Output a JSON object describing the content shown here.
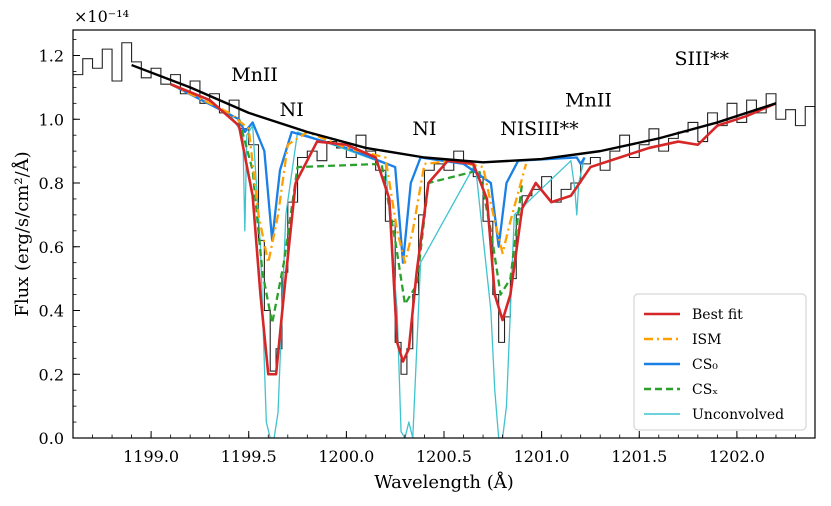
{
  "chart_data": {
    "type": "line",
    "xlabel": "Wavelength (Å)",
    "ylabel": "Flux (erg/s/cm²/Å)",
    "y_scale_label": "×10⁻¹⁴",
    "xlim": [
      1198.6,
      1202.4
    ],
    "ylim": [
      0.0,
      1.28
    ],
    "x_ticks": [
      1199.0,
      1199.5,
      1200.0,
      1200.5,
      1201.0,
      1201.5,
      1202.0
    ],
    "x_tick_labels": [
      "1199.0",
      "1199.5",
      "1200.0",
      "1200.5",
      "1201.0",
      "1201.5",
      "1202.0"
    ],
    "y_ticks": [
      0.0,
      0.2,
      0.4,
      0.6,
      0.8,
      1.0,
      1.2
    ],
    "y_tick_labels": [
      "0.0",
      "0.2",
      "0.4",
      "0.6",
      "0.8",
      "1.0",
      "1.2"
    ],
    "grid": false,
    "legend_position": "bottom-right",
    "continuum": {
      "x": [
        1198.9,
        1199.2,
        1199.5,
        1199.8,
        1200.1,
        1200.4,
        1200.7,
        1201.0,
        1201.3,
        1201.6,
        1201.9,
        1202.2
      ],
      "y": [
        1.17,
        1.1,
        1.02,
        0.96,
        0.91,
        0.88,
        0.865,
        0.875,
        0.9,
        0.94,
        0.99,
        1.05
      ]
    },
    "observed_spectrum": {
      "x": [
        1198.6,
        1198.65,
        1198.7,
        1198.75,
        1198.8,
        1198.85,
        1198.9,
        1198.95,
        1199.0,
        1199.05,
        1199.1,
        1199.15,
        1199.2,
        1199.25,
        1199.3,
        1199.35,
        1199.4,
        1199.45,
        1199.5,
        1199.55,
        1199.58,
        1199.61,
        1199.64,
        1199.67,
        1199.7,
        1199.75,
        1199.8,
        1199.85,
        1199.9,
        1199.95,
        1200.0,
        1200.05,
        1200.1,
        1200.15,
        1200.2,
        1200.25,
        1200.28,
        1200.31,
        1200.34,
        1200.37,
        1200.4,
        1200.45,
        1200.5,
        1200.55,
        1200.6,
        1200.65,
        1200.7,
        1200.75,
        1200.78,
        1200.81,
        1200.84,
        1200.87,
        1200.9,
        1200.95,
        1201.0,
        1201.05,
        1201.1,
        1201.15,
        1201.2,
        1201.25,
        1201.3,
        1201.35,
        1201.4,
        1201.45,
        1201.5,
        1201.55,
        1201.6,
        1201.65,
        1201.7,
        1201.75,
        1201.8,
        1201.85,
        1201.9,
        1201.95,
        1202.0,
        1202.05,
        1202.1,
        1202.15,
        1202.2,
        1202.25,
        1202.3,
        1202.35,
        1202.4
      ],
      "y": [
        1.14,
        1.19,
        1.16,
        1.22,
        1.12,
        1.24,
        1.18,
        1.13,
        1.16,
        1.11,
        1.14,
        1.08,
        1.12,
        1.05,
        1.08,
        1.02,
        1.06,
        0.97,
        0.92,
        0.62,
        0.4,
        0.21,
        0.28,
        0.52,
        0.74,
        0.88,
        0.9,
        0.87,
        0.93,
        0.91,
        0.88,
        0.95,
        0.9,
        0.84,
        0.68,
        0.3,
        0.2,
        0.28,
        0.45,
        0.7,
        0.84,
        0.86,
        0.84,
        0.9,
        0.86,
        0.82,
        0.68,
        0.45,
        0.3,
        0.38,
        0.5,
        0.7,
        0.76,
        0.78,
        0.82,
        0.74,
        0.78,
        0.8,
        0.86,
        0.88,
        0.84,
        0.9,
        0.95,
        0.88,
        0.92,
        0.97,
        0.9,
        0.94,
        0.96,
        0.99,
        0.93,
        1.02,
        0.98,
        1.05,
        0.99,
        1.06,
        1.02,
        1.08,
        1.0,
        1.03,
        0.98,
        1.04,
        1.01
      ]
    },
    "series": [
      {
        "name": "Best fit",
        "color": "#d62728",
        "style": "solid",
        "x": [
          1199.1,
          1199.3,
          1199.45,
          1199.52,
          1199.56,
          1199.6,
          1199.64,
          1199.68,
          1199.74,
          1199.85,
          1200.0,
          1200.15,
          1200.22,
          1200.26,
          1200.29,
          1200.32,
          1200.36,
          1200.42,
          1200.52,
          1200.65,
          1200.72,
          1200.76,
          1200.8,
          1200.84,
          1200.9,
          1200.97,
          1201.05,
          1201.15,
          1201.25,
          1201.4,
          1201.55,
          1201.7,
          1201.8,
          1201.9,
          1202.05,
          1202.2
        ],
        "y": [
          1.11,
          1.06,
          0.98,
          0.76,
          0.45,
          0.2,
          0.2,
          0.45,
          0.8,
          0.93,
          0.92,
          0.88,
          0.75,
          0.3,
          0.24,
          0.28,
          0.52,
          0.8,
          0.87,
          0.86,
          0.75,
          0.45,
          0.37,
          0.45,
          0.72,
          0.8,
          0.74,
          0.76,
          0.85,
          0.88,
          0.91,
          0.93,
          0.92,
          0.98,
          1.01,
          1.05
        ]
      },
      {
        "name": "ISM",
        "color": "#ff9f00",
        "style": "dashdot",
        "x": [
          1199.1,
          1199.4,
          1199.5,
          1199.55,
          1199.6,
          1199.65,
          1199.7,
          1199.8,
          1200.0,
          1200.2,
          1200.26,
          1200.3,
          1200.34,
          1200.4,
          1200.55,
          1200.7,
          1200.76,
          1200.8,
          1200.84,
          1200.92
        ],
        "y": [
          1.11,
          1.02,
          0.97,
          0.7,
          0.55,
          0.7,
          0.92,
          0.96,
          0.91,
          0.88,
          0.65,
          0.55,
          0.65,
          0.86,
          0.87,
          0.85,
          0.68,
          0.58,
          0.68,
          0.86
        ]
      },
      {
        "name": "CS₀",
        "color": "#1a80e5",
        "style": "solid",
        "x": [
          1199.1,
          1199.45,
          1199.48,
          1199.52,
          1199.58,
          1199.62,
          1199.66,
          1199.72,
          1200.0,
          1200.25,
          1200.29,
          1200.33,
          1200.38,
          1200.6,
          1200.74,
          1200.78,
          1200.82,
          1200.88,
          1201.18,
          1201.2,
          1201.22
        ],
        "y": [
          1.11,
          1.0,
          0.96,
          0.99,
          0.9,
          0.62,
          0.84,
          0.96,
          0.91,
          0.85,
          0.55,
          0.8,
          0.88,
          0.86,
          0.8,
          0.6,
          0.8,
          0.87,
          0.88,
          0.86,
          0.88
        ]
      },
      {
        "name": "CSₓ",
        "color": "#2ca02c",
        "style": "dashed",
        "x": [
          1199.45,
          1199.52,
          1199.57,
          1199.62,
          1199.68,
          1199.75,
          1200.18,
          1200.25,
          1200.3,
          1200.36,
          1200.42,
          1200.68,
          1200.74,
          1200.79,
          1200.84,
          1200.9
        ],
        "y": [
          1.0,
          0.84,
          0.52,
          0.36,
          0.55,
          0.85,
          0.86,
          0.62,
          0.42,
          0.48,
          0.8,
          0.84,
          0.65,
          0.45,
          0.5,
          0.8
        ]
      },
      {
        "name": "Unconvolved",
        "color": "#3fc4cf",
        "style": "solid",
        "x": [
          1199.4,
          1199.47,
          1199.48,
          1199.49,
          1199.52,
          1199.56,
          1199.59,
          1199.61,
          1199.63,
          1199.65,
          1199.69,
          1199.75,
          1200.2,
          1200.26,
          1200.28,
          1200.3,
          1200.32,
          1200.34,
          1200.38,
          1200.66,
          1200.74,
          1200.76,
          1200.78,
          1200.8,
          1200.82,
          1200.86,
          1201.15,
          1201.17,
          1201.18,
          1201.19,
          1201.22
        ],
        "y": [
          1.02,
          0.95,
          0.65,
          0.95,
          0.98,
          0.6,
          0.05,
          0.0,
          0.0,
          0.08,
          0.7,
          0.96,
          0.86,
          0.4,
          0.02,
          0.0,
          0.05,
          0.0,
          0.55,
          0.86,
          0.4,
          0.15,
          0.0,
          0.0,
          0.1,
          0.7,
          0.87,
          0.78,
          0.7,
          0.8,
          0.88
        ]
      }
    ],
    "annotations": [
      {
        "text": "MnII",
        "x": 1199.53,
        "y": 1.12
      },
      {
        "text": "NI",
        "x": 1199.72,
        "y": 1.01
      },
      {
        "text": "NI",
        "x": 1200.4,
        "y": 0.95
      },
      {
        "text": "NI",
        "x": 1200.85,
        "y": 0.95
      },
      {
        "text": "SIII**",
        "x": 1201.05,
        "y": 0.95
      },
      {
        "text": "MnII",
        "x": 1201.24,
        "y": 1.04
      },
      {
        "text": "SIII**",
        "x": 1201.82,
        "y": 1.17
      }
    ],
    "legend": [
      "Best fit",
      "ISM",
      "CS₀",
      "CSₓ",
      "Unconvolved"
    ]
  }
}
